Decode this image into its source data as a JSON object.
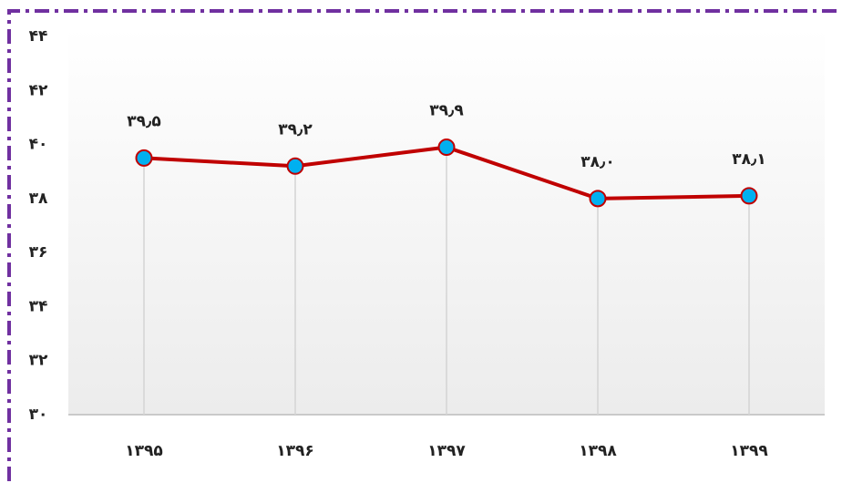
{
  "chart_data": {
    "type": "line",
    "categories": [
      "۱۳۹۵",
      "۱۳۹۶",
      "۱۳۹۷",
      "۱۳۹۸",
      "۱۳۹۹"
    ],
    "values": [
      39.5,
      39.2,
      39.9,
      38.0,
      38.1
    ],
    "value_labels": [
      "۳۹٫۵",
      "۳۹٫۲",
      "۳۹٫۹",
      "۳۸٫۰",
      "۳۸٫۱"
    ],
    "color": "#c00000",
    "marker_color": "#00b0f0",
    "ylim": [
      30,
      44
    ],
    "yticks": [
      {
        "value": 30,
        "label": "۳۰"
      },
      {
        "value": 32,
        "label": "۳۲"
      },
      {
        "value": 34,
        "label": "۳۴"
      },
      {
        "value": 36,
        "label": "۳۶"
      },
      {
        "value": 38,
        "label": "۳۸"
      },
      {
        "value": 40,
        "label": "۴۰"
      },
      {
        "value": 42,
        "label": "۴۲"
      },
      {
        "value": 44,
        "label": "۴۴"
      }
    ]
  }
}
